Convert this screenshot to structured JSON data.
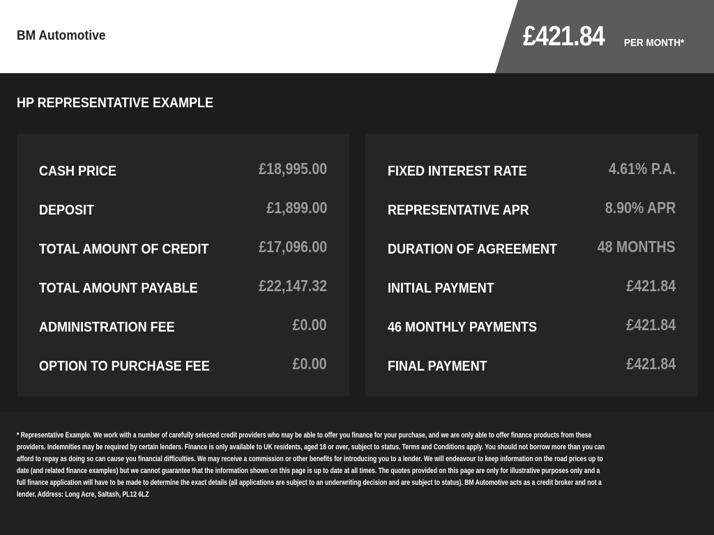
{
  "header": {
    "brand": "BM Automotive",
    "price": "£421.84",
    "per_month": "PER MONTH*",
    "price_bg": "#5b5b5b"
  },
  "main": {
    "heading": "HP REPRESENTATIVE EXAMPLE",
    "left": [
      {
        "label": "CASH PRICE",
        "value": "£18,995.00"
      },
      {
        "label": "DEPOSIT",
        "value": "£1,899.00"
      },
      {
        "label": "TOTAL AMOUNT OF CREDIT",
        "value": "£17,096.00"
      },
      {
        "label": "TOTAL AMOUNT PAYABLE",
        "value": "£22,147.32"
      },
      {
        "label": "ADMINISTRATION FEE",
        "value": "£0.00"
      },
      {
        "label": "OPTION TO PURCHASE FEE",
        "value": "£0.00"
      }
    ],
    "right": [
      {
        "label": "FIXED INTEREST RATE",
        "value": "4.61% P.A."
      },
      {
        "label": "REPRESENTATIVE APR",
        "value": "8.90% APR"
      },
      {
        "label": "DURATION OF AGREEMENT",
        "value": "48 MONTHS"
      },
      {
        "label": "INITIAL PAYMENT",
        "value": "£421.84"
      },
      {
        "label": "46 MONTHLY PAYMENTS",
        "value": "£421.84"
      },
      {
        "label": "FINAL PAYMENT",
        "value": "£421.84"
      }
    ]
  },
  "disclaimer": [
    "* Representative Example. We work with a number of carefully selected credit providers who may be able to offer you finance for your purchase, and we are only able to offer finance products from these",
    "providers. Indemnities may be required by certain lenders. Finance is only available to UK residents, aged 18 or over, subject to status. Terms and Conditions apply. You should not borrow more than you can",
    "afford to repay as doing so can cause you financial difficulties. We may receive a commission or other benefits for introducing you to a lender. We will endeavour to keep information on the road prices up to",
    "date (and related finance examples) but we cannot guarantee that the information shown on this page is up to date at all times. The quotes provided on this page are only for illustrative purposes only and a",
    "full finance application will have to be made to determine the exact details (all applications are subject to an underwriting decision and are subject to status). BM Automotive acts as a credit broker and not a",
    "lender. Address: Long Acre, Saltash, PL12 6LZ"
  ]
}
